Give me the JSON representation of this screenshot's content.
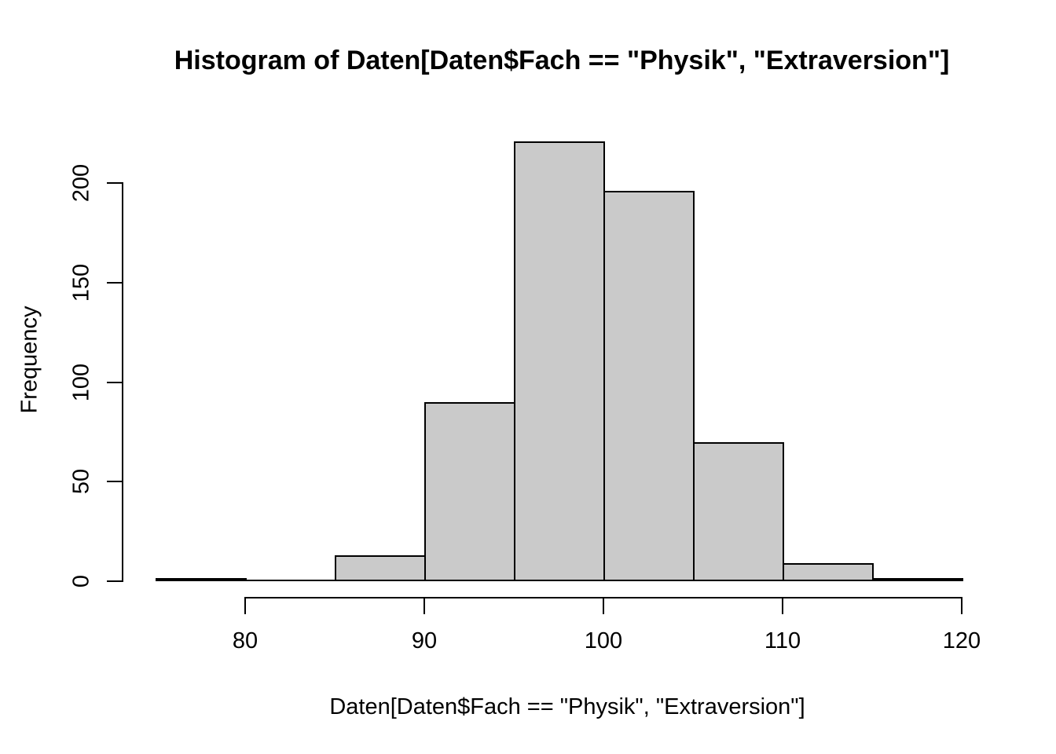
{
  "chart_data": {
    "type": "bar",
    "subtype": "histogram",
    "title": "Histogram of Daten[Daten$Fach == \"Physik\", \"Extraversion\"]",
    "xlabel": "Daten[Daten$Fach == \"Physik\", \"Extraversion\"]",
    "ylabel": "Frequency",
    "bin_edges": [
      75,
      80,
      85,
      90,
      95,
      100,
      105,
      110,
      115,
      120
    ],
    "frequencies": [
      1,
      0,
      13,
      90,
      221,
      196,
      70,
      9,
      1
    ],
    "categories": [
      "75-80",
      "80-85",
      "85-90",
      "90-95",
      "95-100",
      "100-105",
      "105-110",
      "110-115",
      "115-120"
    ],
    "x_ticks": [
      80,
      90,
      100,
      110,
      120
    ],
    "y_ticks": [
      0,
      50,
      100,
      150,
      200
    ],
    "xlim": [
      75,
      120
    ],
    "ylim": [
      0,
      221
    ],
    "grid": false,
    "legend": "none",
    "colors": {
      "bar_fill": "#cacaca",
      "bar_border": "#000000",
      "axis": "#000000",
      "text": "#000000",
      "background": "#ffffff"
    }
  }
}
